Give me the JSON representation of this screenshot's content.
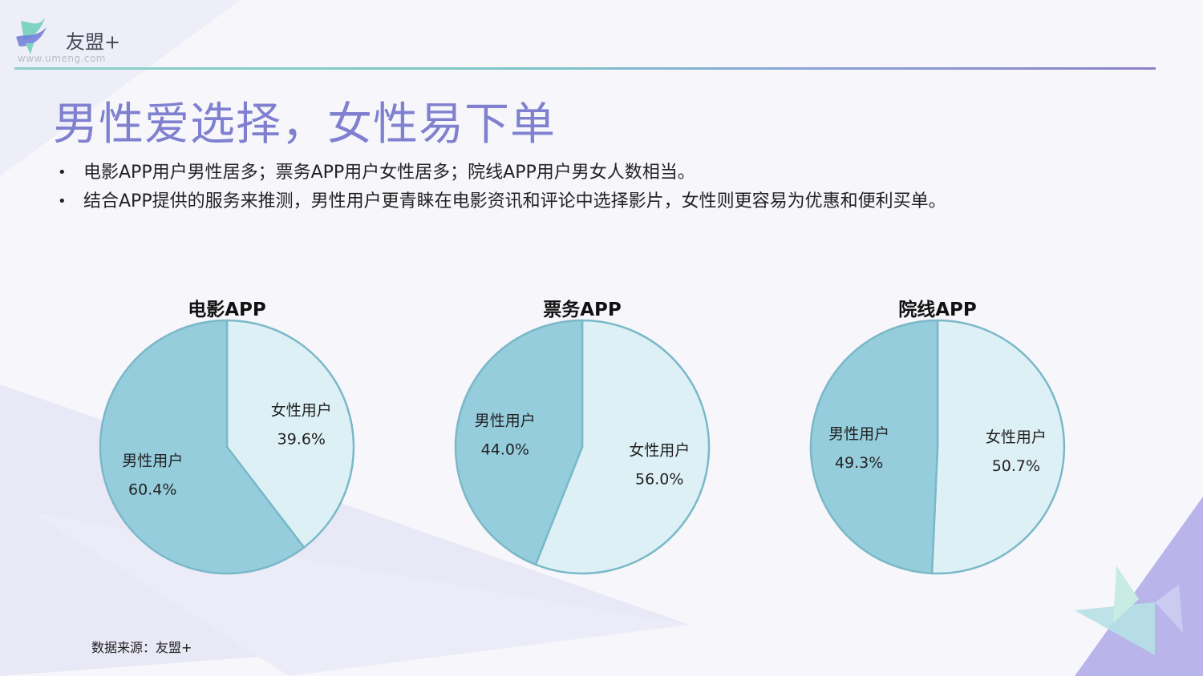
{
  "brand": {
    "name": "友盟+",
    "url": "www.umeng.com"
  },
  "title": "男性爱选择，女性易下单",
  "bullets": [
    "电影APP用户男性居多；票务APP用户女性居多；院线APP用户男女人数相当。",
    "结合APP提供的服务来推测，男性用户更青睐在电影资讯和评论中选择影片，女性则更容易为优惠和便利买单。"
  ],
  "bullet_symbol": "•",
  "source": "数据来源：友盟+",
  "colors": {
    "title": "#8080d0",
    "male": "#96cddd",
    "female": "#ddf0f5",
    "stroke": "#7ab8c8",
    "label": "#222222"
  },
  "chart_data": [
    {
      "type": "pie",
      "title": "电影APP",
      "slices": [
        {
          "label": "女性用户",
          "value": 39.6,
          "display": "39.6%",
          "color": "#ddf0f5"
        },
        {
          "label": "男性用户",
          "value": 60.4,
          "display": "60.4%",
          "color": "#96cddd"
        }
      ]
    },
    {
      "type": "pie",
      "title": "票务APP",
      "slices": [
        {
          "label": "女性用户",
          "value": 56.0,
          "display": "56.0%",
          "color": "#ddf0f5"
        },
        {
          "label": "男性用户",
          "value": 44.0,
          "display": "44.0%",
          "color": "#96cddd"
        }
      ]
    },
    {
      "type": "pie",
      "title": "院线APP",
      "slices": [
        {
          "label": "女性用户",
          "value": 50.7,
          "display": "50.7%",
          "color": "#ddf0f5"
        },
        {
          "label": "男性用户",
          "value": 49.3,
          "display": "49.3%",
          "color": "#96cddd"
        }
      ]
    }
  ]
}
